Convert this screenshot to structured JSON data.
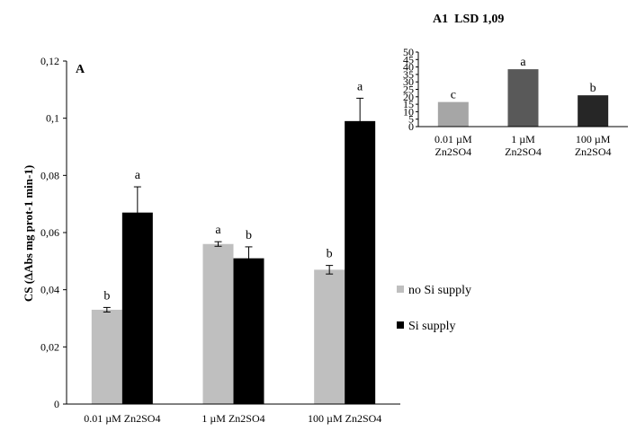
{
  "chart_data": [
    {
      "type": "bar",
      "panel_label": "A",
      "ylabel": "CS (ΔAbs mg prot-1 min-1)",
      "xlabel": "",
      "ylim": [
        0,
        0.12
      ],
      "yticks": [
        "0",
        "0,02",
        "0,04",
        "0,06",
        "0,08",
        "0,1",
        "0,12"
      ],
      "ytick_values": [
        0,
        0.02,
        0.04,
        0.06,
        0.08,
        0.1,
        0.12
      ],
      "categories": [
        "0.01 µM Zn2SO4",
        "1 µM Zn2SO4",
        "100 µM Zn2SO4"
      ],
      "series": [
        {
          "name": "no Si supply",
          "color": "#bfbfbf",
          "values": [
            0.033,
            0.056,
            0.047
          ],
          "errors": [
            0.0008,
            0.0008,
            0.0015
          ],
          "letters": [
            "b",
            "a",
            "b"
          ]
        },
        {
          "name": "Si supply",
          "color": "#000000",
          "values": [
            0.067,
            0.051,
            0.099
          ],
          "errors": [
            0.009,
            0.004,
            0.008
          ],
          "letters": [
            "a",
            "b",
            "a"
          ]
        }
      ],
      "legend_position": "right",
      "grid": false
    },
    {
      "type": "bar",
      "title": "A1  LSD 1,09",
      "ylim": [
        0,
        50
      ],
      "yticks": [
        "0",
        "5",
        "10",
        "15",
        "20",
        "25",
        "30",
        "35",
        "40",
        "45",
        "50"
      ],
      "ytick_values": [
        0,
        5,
        10,
        15,
        20,
        25,
        30,
        35,
        40,
        45,
        50
      ],
      "categories": [
        [
          "0.01 µM",
          "Zn2SO4"
        ],
        [
          "1 µM",
          "Zn2SO4"
        ],
        [
          "100 µM",
          "Zn2SO4"
        ]
      ],
      "values": [
        16.5,
        38.5,
        21
      ],
      "colors": [
        "#a6a6a6",
        "#595959",
        "#262626"
      ],
      "letters": [
        "c",
        "a",
        "b"
      ],
      "grid": false
    }
  ]
}
